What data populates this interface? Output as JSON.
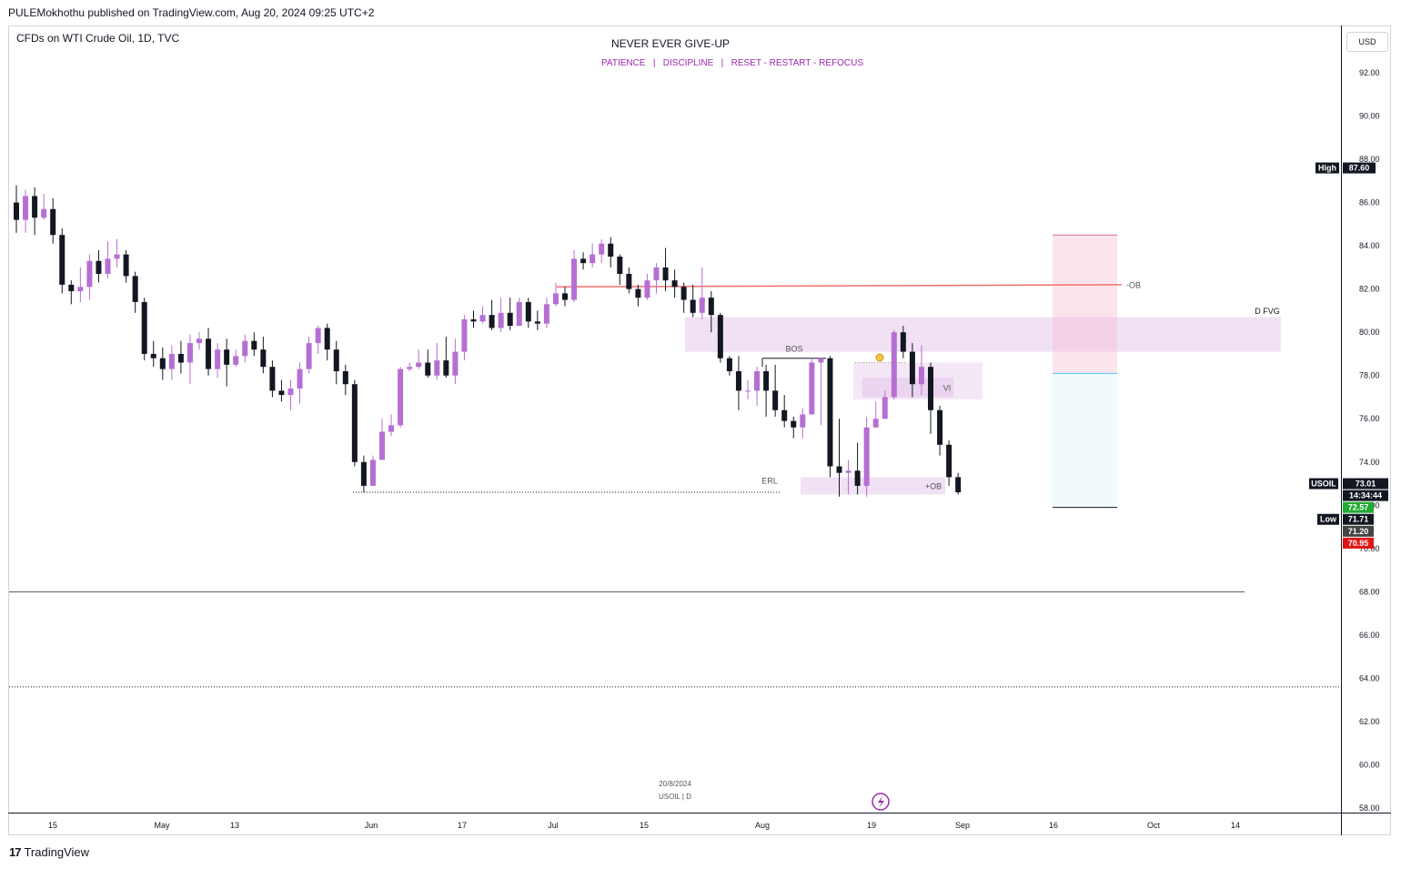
{
  "header": {
    "published_by": "PULEMokhothu published on TradingView.com, Aug 20, 2024 09:25 UTC+2",
    "symbol": "CFDs on WTI Crude Oil, 1D, TVC",
    "currency": "USD"
  },
  "footer": {
    "brand": "TradingView",
    "brand_mark": "17"
  },
  "watermark": {
    "line1": "20/8/2024",
    "line2": "USOIL | D"
  },
  "annotations": {
    "bos": "BOS",
    "erl": "ERL",
    "vi": "VI",
    "ob_plus": "+OB",
    "ob_minus": "-OB",
    "dfvg": "D FVG"
  },
  "badges": {
    "high_label": "High",
    "high_value": "87.60",
    "symbol_label": "USOIL",
    "last_value": "73.01",
    "countdown": "14:34:44",
    "bid": "72.57",
    "low_label": "Low",
    "low_value": "71.71",
    "price_71_20": "71.20",
    "price_70_95": "70.95"
  },
  "colors": {
    "up": "#b66ed4",
    "down": "#131722",
    "accent": "#9c27b0",
    "red_line": "#f07070"
  },
  "chart_data": {
    "type": "candlestick",
    "title": "NEVER EVER GIVE-UP",
    "subtitle": "PATIENCE   |   DISCIPLINE   |   RESET - RESTART - REFOCUS",
    "ylim": [
      57.5,
      94
    ],
    "yticks": [
      "92.00",
      "90.00",
      "88.00",
      "86.00",
      "84.00",
      "82.00",
      "80.00",
      "78.00",
      "76.00",
      "74.00",
      "72.00",
      "70.00",
      "68.00",
      "66.00",
      "64.00",
      "62.00",
      "60.00",
      "58.00"
    ],
    "xticks": [
      "15",
      "May",
      "13",
      "Jun",
      "17",
      "Jul",
      "15",
      "Aug",
      "19",
      "Sep",
      "16",
      "Oct",
      "14"
    ],
    "candles": [
      [
        86.0,
        85.2,
        86.8,
        84.6
      ],
      [
        85.2,
        86.3,
        86.6,
        84.6
      ],
      [
        86.3,
        85.3,
        86.7,
        84.5
      ],
      [
        85.3,
        85.7,
        86.4,
        85.2
      ],
      [
        85.7,
        84.5,
        86.2,
        84.1
      ],
      [
        84.5,
        82.2,
        84.8,
        81.8
      ],
      [
        82.2,
        81.9,
        82.4,
        81.3
      ],
      [
        81.9,
        82.1,
        83.0,
        81.4
      ],
      [
        82.1,
        83.3,
        83.6,
        81.5
      ],
      [
        83.3,
        82.7,
        83.8,
        82.3
      ],
      [
        82.7,
        83.4,
        84.2,
        82.5
      ],
      [
        83.4,
        83.6,
        84.3,
        83.0
      ],
      [
        83.6,
        82.6,
        83.8,
        82.3
      ],
      [
        82.6,
        81.4,
        82.8,
        80.9
      ],
      [
        81.4,
        79.0,
        81.6,
        78.7
      ],
      [
        79.0,
        78.8,
        79.6,
        78.4
      ],
      [
        78.8,
        78.3,
        79.3,
        77.8
      ],
      [
        78.3,
        79.0,
        79.4,
        77.8
      ],
      [
        79.0,
        78.6,
        79.6,
        78.1
      ],
      [
        78.6,
        79.5,
        79.9,
        77.6
      ],
      [
        79.5,
        79.7,
        80.0,
        79.2
      ],
      [
        79.7,
        78.3,
        80.2,
        78.0
      ],
      [
        78.3,
        79.2,
        79.5,
        77.9
      ],
      [
        79.2,
        78.5,
        79.7,
        77.5
      ],
      [
        78.5,
        78.9,
        79.2,
        78.4
      ],
      [
        78.9,
        79.6,
        79.9,
        78.6
      ],
      [
        79.6,
        79.2,
        80.0,
        78.9
      ],
      [
        79.2,
        78.4,
        79.8,
        78.1
      ],
      [
        78.4,
        77.3,
        78.7,
        77.0
      ],
      [
        77.3,
        77.1,
        77.8,
        76.8
      ],
      [
        77.1,
        77.4,
        77.8,
        76.4
      ],
      [
        77.4,
        78.3,
        78.6,
        76.7
      ],
      [
        78.3,
        79.5,
        79.8,
        78.1
      ],
      [
        79.5,
        80.2,
        80.3,
        79.0
      ],
      [
        80.2,
        79.2,
        80.4,
        78.7
      ],
      [
        79.2,
        78.2,
        79.6,
        77.6
      ],
      [
        78.2,
        77.6,
        78.5,
        77.1
      ],
      [
        77.6,
        74.0,
        77.8,
        73.8
      ],
      [
        74.0,
        72.9,
        74.3,
        72.6
      ],
      [
        72.9,
        74.1,
        74.3,
        72.9
      ],
      [
        74.1,
        75.4,
        76.0,
        74.1
      ],
      [
        75.4,
        75.7,
        76.2,
        75.2
      ],
      [
        75.7,
        78.3,
        78.4,
        75.6
      ],
      [
        78.3,
        78.4,
        78.6,
        78.2
      ],
      [
        78.4,
        78.6,
        79.2,
        78.3
      ],
      [
        78.6,
        78.0,
        79.2,
        77.9
      ],
      [
        78.0,
        78.7,
        79.5,
        77.8
      ],
      [
        78.7,
        78.0,
        79.8,
        77.9
      ],
      [
        78.0,
        79.1,
        79.7,
        77.6
      ],
      [
        79.1,
        80.6,
        80.8,
        78.7
      ],
      [
        80.6,
        80.5,
        81.0,
        80.2
      ],
      [
        80.5,
        80.8,
        81.2,
        80.4
      ],
      [
        80.8,
        80.2,
        81.5,
        80.1
      ],
      [
        80.2,
        80.9,
        81.6,
        80.0
      ],
      [
        80.9,
        80.3,
        81.6,
        80.1
      ],
      [
        80.3,
        81.4,
        81.6,
        80.4
      ],
      [
        81.4,
        80.5,
        81.6,
        80.2
      ],
      [
        80.5,
        80.4,
        81.0,
        80.1
      ],
      [
        80.4,
        81.3,
        81.6,
        80.2
      ],
      [
        81.3,
        81.8,
        82.3,
        81.2
      ],
      [
        81.8,
        81.5,
        82.1,
        81.2
      ],
      [
        81.5,
        83.4,
        83.8,
        81.4
      ],
      [
        83.4,
        83.2,
        83.7,
        82.9
      ],
      [
        83.2,
        83.6,
        84.1,
        83.0
      ],
      [
        83.6,
        84.1,
        84.3,
        83.2
      ],
      [
        84.1,
        83.5,
        84.4,
        83.0
      ],
      [
        83.5,
        82.7,
        83.6,
        82.2
      ],
      [
        82.7,
        82.0,
        83.0,
        81.8
      ],
      [
        82.0,
        81.6,
        82.2,
        81.2
      ],
      [
        81.6,
        82.4,
        82.7,
        81.5
      ],
      [
        82.4,
        83.0,
        83.2,
        81.8
      ],
      [
        83.0,
        82.4,
        83.9,
        81.9
      ],
      [
        82.4,
        82.1,
        82.9,
        81.6
      ],
      [
        82.1,
        81.5,
        82.3,
        80.9
      ],
      [
        81.5,
        80.9,
        82.2,
        80.7
      ],
      [
        80.9,
        81.6,
        83.0,
        80.6
      ],
      [
        81.6,
        80.8,
        81.9,
        80.0
      ],
      [
        80.8,
        78.8,
        80.9,
        78.6
      ],
      [
        78.8,
        78.2,
        78.9,
        78.0
      ],
      [
        78.2,
        77.3,
        78.9,
        76.4
      ],
      [
        77.3,
        77.3,
        77.8,
        76.9
      ],
      [
        77.3,
        78.2,
        78.4,
        76.6
      ],
      [
        78.2,
        77.3,
        78.5,
        76.1
      ],
      [
        77.3,
        76.4,
        78.5,
        76.1
      ],
      [
        76.4,
        75.9,
        77.1,
        75.6
      ],
      [
        75.9,
        75.6,
        76.1,
        75.1
      ],
      [
        75.6,
        76.2,
        76.5,
        75.1
      ],
      [
        76.2,
        78.6,
        78.8,
        76.2
      ],
      [
        78.6,
        78.8,
        78.8,
        75.7
      ],
      [
        78.8,
        73.8,
        78.9,
        73.3
      ],
      [
        73.8,
        73.5,
        76.0,
        72.4
      ],
      [
        73.5,
        73.6,
        74.1,
        72.5
      ],
      [
        73.6,
        72.9,
        74.9,
        72.5
      ],
      [
        72.9,
        75.6,
        76.1,
        72.4
      ],
      [
        75.6,
        76.0,
        76.8,
        75.6
      ],
      [
        76.0,
        77.0,
        77.3,
        76.0
      ],
      [
        77.0,
        80.0,
        80.1,
        76.9
      ],
      [
        80.0,
        79.1,
        80.3,
        78.8
      ],
      [
        79.1,
        77.6,
        79.5,
        77.0
      ],
      [
        77.6,
        78.4,
        79.4,
        77.1
      ],
      [
        78.4,
        76.4,
        78.6,
        75.3
      ],
      [
        76.4,
        74.8,
        76.6,
        74.3
      ],
      [
        74.8,
        73.3,
        75.0,
        72.9
      ],
      [
        73.3,
        72.6,
        73.5,
        72.5
      ]
    ],
    "levels": {
      "red_line_start": 82.1,
      "red_line_end": 82.2,
      "ob_minus": 82.2,
      "erl": 72.6,
      "grey_line": 68.0,
      "dotted_line": 63.6
    },
    "zones": {
      "dfvg": [
        79.1,
        80.7
      ],
      "vi": [
        77.0,
        77.9
      ],
      "vi_outer": [
        76.9,
        78.6
      ],
      "ob_plus": [
        72.5,
        73.3
      ],
      "short_stop": [
        78.1,
        84.5
      ],
      "short_target": [
        71.9,
        78.1
      ]
    },
    "legend": "none",
    "grid": false
  }
}
